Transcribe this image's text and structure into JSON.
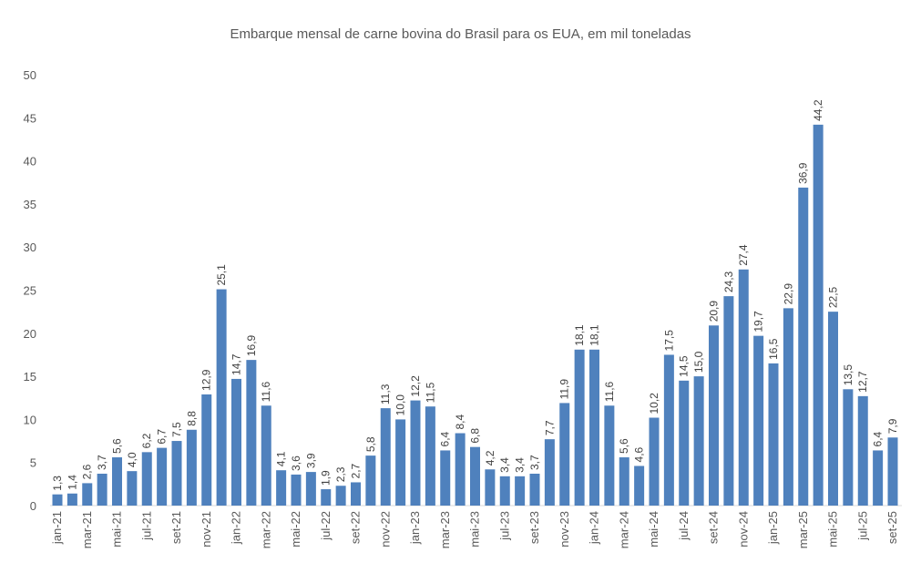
{
  "chart_data": {
    "type": "bar",
    "title": "Embarque mensal de carne bovina do Brasil para os EUA, em mil toneladas",
    "x_tick_labels": [
      "jan-21",
      "mar-21",
      "mai-21",
      "jul-21",
      "set-21",
      "nov-21",
      "jan-22",
      "mar-22",
      "mai-22",
      "jul-22",
      "set-22",
      "nov-22",
      "jan-23",
      "mar-23",
      "mai-23",
      "jul-23",
      "set-23",
      "nov-23",
      "jan-24",
      "mar-24",
      "mai-24",
      "jul-24",
      "set-24",
      "nov-24",
      "jan-25",
      "mar-25",
      "mai-25",
      "jul-25",
      "set-25"
    ],
    "values": [
      1.3,
      1.4,
      2.6,
      3.7,
      5.6,
      4.0,
      6.2,
      6.7,
      7.5,
      8.8,
      12.9,
      25.1,
      14.7,
      16.9,
      11.6,
      4.1,
      3.6,
      3.9,
      1.9,
      2.3,
      2.7,
      5.8,
      11.3,
      10.0,
      12.2,
      11.5,
      6.4,
      8.4,
      6.8,
      4.2,
      3.4,
      3.4,
      3.7,
      7.7,
      11.9,
      18.1,
      18.1,
      11.6,
      5.6,
      4.6,
      10.2,
      17.5,
      14.5,
      15.0,
      20.9,
      24.3,
      27.4,
      19.7,
      16.5,
      22.9,
      36.9,
      44.2,
      22.5,
      13.5,
      12.7,
      6.4,
      7.9
    ],
    "data_labels": [
      "1,3",
      "1,4",
      "2,6",
      "3,7",
      "5,6",
      "4,0",
      "6,2",
      "6,7",
      "7,5",
      "8,8",
      "12,9",
      "25,1",
      "14,7",
      "16,9",
      "11,6",
      "4,1",
      "3,6",
      "3,9",
      "1,9",
      "2,3",
      "2,7",
      "5,8",
      "11,3",
      "10,0",
      "12,2",
      "11,5",
      "6,4",
      "8,4",
      "6,8",
      "4,2",
      "3,4",
      "3,4",
      "3,7",
      "7,7",
      "11,9",
      "18,1",
      "18,1",
      "11,6",
      "5,6",
      "4,6",
      "10,2",
      "17,5",
      "14,5",
      "15,0",
      "20,9",
      "24,3",
      "27,4",
      "19,7",
      "16,5",
      "22,9",
      "36,9",
      "44,2",
      "22,5",
      "13,5",
      "12,7",
      "6,4",
      "7,9"
    ],
    "y_ticks": [
      "0",
      "5",
      "10",
      "15",
      "20",
      "25",
      "30",
      "35",
      "40",
      "45",
      "50"
    ],
    "ylim": [
      0,
      50
    ],
    "grid": false,
    "legend": "none",
    "bar_color": "#4F81BD",
    "axis_color": "#D9D9D9"
  }
}
